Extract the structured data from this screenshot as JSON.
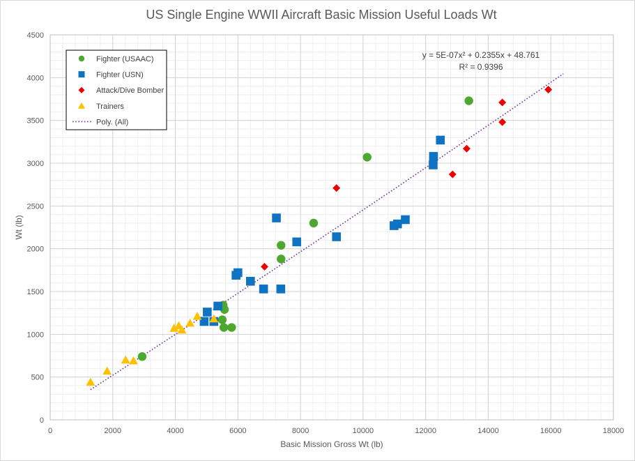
{
  "chart_data": {
    "type": "scatter",
    "title": "US Single Engine WWII Aircraft Basic Mission Useful Loads Wt",
    "xlabel": "Basic Mission Gross Wt (lb)",
    "ylabel": "Wt (lb)",
    "xlim": [
      0,
      18000
    ],
    "ylim": [
      0,
      4500
    ],
    "x_ticks": [
      "0",
      "2000",
      "4000",
      "6000",
      "8000",
      "10000",
      "12000",
      "14000",
      "16000",
      "18000"
    ],
    "y_ticks": [
      "0",
      "500",
      "1000",
      "1500",
      "2000",
      "2500",
      "3000",
      "3500",
      "4000",
      "4500"
    ],
    "grid": true,
    "minor_grid": true,
    "legend_position": "top-left",
    "series": [
      {
        "name": "Fighter (USAAC)",
        "marker": "circle",
        "color": "#4ea72e",
        "points": [
          [
            2940,
            740
          ],
          [
            5530,
            1340
          ],
          [
            5570,
            1290
          ],
          [
            5500,
            1170
          ],
          [
            5550,
            1080
          ],
          [
            5800,
            1080
          ],
          [
            7380,
            2040
          ],
          [
            7380,
            1880
          ],
          [
            8420,
            2300
          ],
          [
            10130,
            3070
          ],
          [
            13380,
            3730
          ]
        ]
      },
      {
        "name": "Fighter (USN)",
        "marker": "square",
        "color": "#0f73c4",
        "points": [
          [
            4920,
            1150
          ],
          [
            5020,
            1260
          ],
          [
            5230,
            1150
          ],
          [
            5360,
            1330
          ],
          [
            5940,
            1690
          ],
          [
            6000,
            1720
          ],
          [
            6400,
            1620
          ],
          [
            6820,
            1530
          ],
          [
            7230,
            2360
          ],
          [
            7370,
            1530
          ],
          [
            7880,
            2080
          ],
          [
            9150,
            2140
          ],
          [
            10990,
            2270
          ],
          [
            11100,
            2290
          ],
          [
            11350,
            2340
          ],
          [
            12240,
            2980
          ],
          [
            12250,
            3080
          ],
          [
            12470,
            3270
          ]
        ]
      },
      {
        "name": "Attack/Dive Bomber",
        "marker": "diamond",
        "color": "#ee0000",
        "points": [
          [
            6850,
            1790
          ],
          [
            9150,
            2710
          ],
          [
            12860,
            2870
          ],
          [
            13310,
            3170
          ],
          [
            14450,
            3480
          ],
          [
            14450,
            3710
          ],
          [
            15920,
            3860
          ]
        ]
      },
      {
        "name": "Trainers",
        "marker": "triangle",
        "color": "#ffc000",
        "points": [
          [
            1290,
            440
          ],
          [
            1820,
            570
          ],
          [
            2410,
            700
          ],
          [
            2660,
            690
          ],
          [
            3960,
            1070
          ],
          [
            4110,
            1100
          ],
          [
            4210,
            1050
          ],
          [
            4470,
            1130
          ],
          [
            4700,
            1210
          ],
          [
            5230,
            1180
          ]
        ]
      }
    ],
    "trendline": {
      "name": "Poly. (All)",
      "type": "polynomial",
      "order": 2,
      "coefficients": [
        5e-07,
        0.2355,
        48.761
      ],
      "x_range": [
        1290,
        16400
      ],
      "color": "#7030a0",
      "style": "dotted",
      "equation": "y = 5E-07x² + 0.2355x + 48.761",
      "r_squared": "R² = 0.9396"
    }
  }
}
